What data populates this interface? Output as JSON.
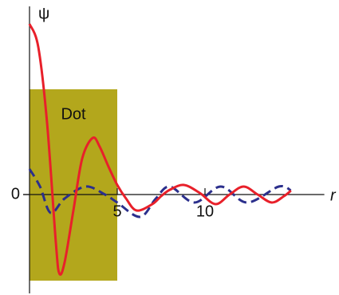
{
  "chart_data": {
    "type": "line",
    "x_label": "r",
    "y_label": "ψ",
    "xlim": [
      0,
      16.8
    ],
    "ylim": [
      -1.24,
      2.36
    ],
    "xticks": [
      5,
      10
    ],
    "yticks": [
      0
    ],
    "region": {
      "label": "Dot",
      "xlim": [
        0,
        5
      ],
      "ylim": [
        -1.08,
        1.32
      ],
      "color": "#b3a71c"
    },
    "series": [
      {
        "color": "#e8202a",
        "line_style": "solid",
        "x": [
          0,
          0.5,
          1.0,
          1.5,
          1.7,
          2.0,
          2.5,
          3.0,
          3.6,
          4.0,
          4.5,
          5.0,
          5.5,
          6.1,
          7.0,
          7.5,
          8.0,
          8.8,
          9.7,
          10.6,
          11.4,
          12.2,
          13.0,
          13.8,
          14.5,
          14.9
        ],
        "values": [
          2.14,
          1.85,
          0.9,
          -0.6,
          -0.99,
          -0.85,
          -0.2,
          0.45,
          0.71,
          0.6,
          0.35,
          0.12,
          -0.05,
          -0.2,
          -0.12,
          -0.02,
          0.06,
          0.12,
          0.02,
          -0.12,
          0.0,
          0.1,
          0.0,
          -0.1,
          -0.02,
          0.05
        ]
      },
      {
        "color": "#2b2f8c",
        "line_style": "dashed",
        "x": [
          0,
          0.6,
          1.2,
          2.0,
          3.2,
          4.3,
          5.0,
          6.3,
          7.2,
          8.0,
          9.4,
          10.9,
          12.4,
          14.2,
          14.9
        ],
        "values": [
          0.32,
          0.1,
          -0.23,
          -0.05,
          0.1,
          0.0,
          -0.1,
          -0.28,
          -0.05,
          0.1,
          -0.1,
          0.1,
          -0.1,
          0.1,
          0.05
        ]
      }
    ]
  }
}
